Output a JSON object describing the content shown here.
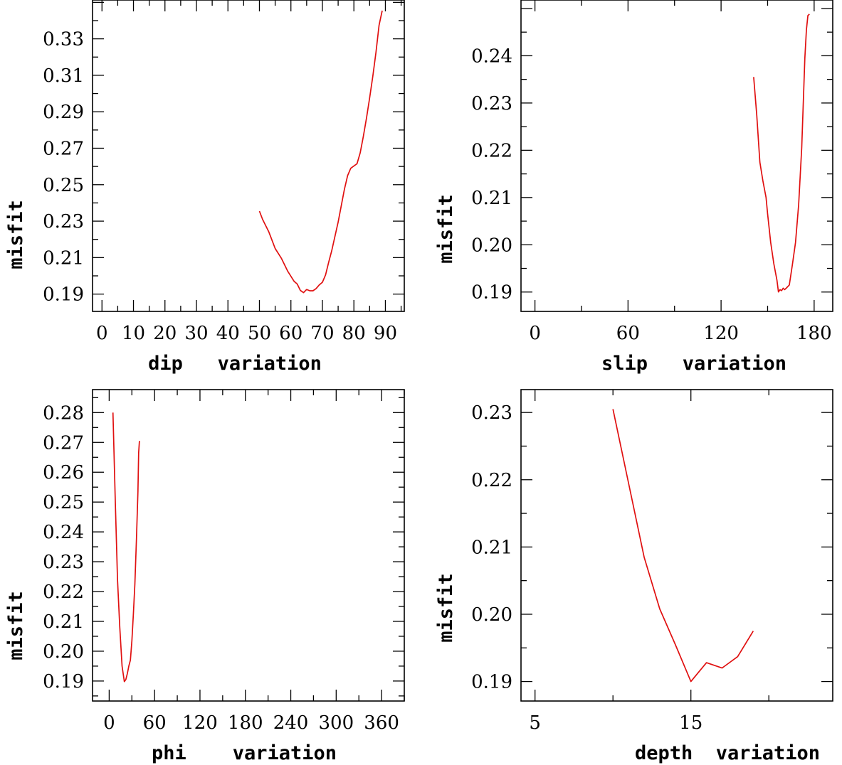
{
  "chart_data": [
    {
      "type": "line",
      "panel": "top-left",
      "xlabel": "dip   variation",
      "ylabel": "misfit",
      "xlim": [
        -3,
        96
      ],
      "ylim": [
        0.1805,
        0.3513
      ],
      "x_ticks": [
        0,
        10,
        20,
        30,
        40,
        50,
        60,
        70,
        80,
        90
      ],
      "x_tick_labels": [
        "0",
        "10",
        "20",
        "30",
        "40",
        "50",
        "60",
        "70",
        "80",
        "90"
      ],
      "y_ticks": [
        0.19,
        0.21,
        0.23,
        0.25,
        0.27,
        0.29,
        0.31,
        0.33
      ],
      "y_tick_labels": [
        "0.19",
        "0.21",
        "0.23",
        "0.25",
        "0.27",
        "0.29",
        "0.31",
        "0.33"
      ],
      "series": [
        {
          "name": "misfit",
          "color": "#e01010",
          "x": [
            50,
            51,
            53,
            55,
            57,
            59,
            61,
            62,
            63,
            64,
            65,
            66,
            67,
            68,
            69,
            70,
            71,
            72,
            73,
            75,
            77,
            78,
            79,
            80,
            81,
            82,
            83,
            84,
            85,
            86,
            87,
            88,
            89
          ],
          "y": [
            0.2355,
            0.231,
            0.224,
            0.215,
            0.2095,
            0.2025,
            0.197,
            0.1955,
            0.192,
            0.1908,
            0.1925,
            0.1918,
            0.1918,
            0.193,
            0.195,
            0.1965,
            0.2005,
            0.2075,
            0.214,
            0.2295,
            0.2475,
            0.255,
            0.259,
            0.2603,
            0.2615,
            0.2675,
            0.2765,
            0.2865,
            0.2975,
            0.3095,
            0.3225,
            0.3375,
            0.3455
          ]
        }
      ]
    },
    {
      "type": "line",
      "panel": "top-right",
      "xlabel": "slip   variation",
      "ylabel": "misfit",
      "xlim": [
        -9,
        192
      ],
      "ylim": [
        0.1859,
        0.2518
      ],
      "x_ticks": [
        0,
        60,
        120,
        180
      ],
      "x_tick_labels": [
        "0",
        "60",
        "120",
        "180"
      ],
      "y_ticks": [
        0.19,
        0.2,
        0.21,
        0.22,
        0.23,
        0.24
      ],
      "y_tick_labels": [
        "0.19",
        "0.20",
        "0.21",
        "0.22",
        "0.23",
        "0.24"
      ],
      "series": [
        {
          "name": "misfit",
          "color": "#e01010",
          "x": [
            141,
            143,
            145,
            147,
            149,
            150,
            152,
            154,
            156,
            157,
            158,
            159,
            160,
            161,
            162,
            164,
            166,
            168,
            170,
            172,
            174,
            175,
            176,
            177
          ],
          "y": [
            0.2355,
            0.2275,
            0.2175,
            0.2135,
            0.21,
            0.2065,
            0.2005,
            0.196,
            0.1925,
            0.19,
            0.1905,
            0.1903,
            0.1908,
            0.1905,
            0.1908,
            0.1915,
            0.1958,
            0.2005,
            0.2085,
            0.2205,
            0.2395,
            0.2455,
            0.2485,
            0.2488
          ]
        }
      ]
    },
    {
      "type": "line",
      "panel": "bottom-left",
      "xlabel": "phi    variation",
      "ylabel": "misfit",
      "xlim": [
        -22,
        390
      ],
      "ylim": [
        0.1833,
        0.2877
      ],
      "x_ticks": [
        0,
        60,
        120,
        180,
        240,
        300,
        360
      ],
      "x_tick_labels": [
        "0",
        "60",
        "120",
        "180",
        "240",
        "300",
        "360"
      ],
      "y_ticks": [
        0.19,
        0.2,
        0.21,
        0.22,
        0.23,
        0.24,
        0.25,
        0.26,
        0.27,
        0.28
      ],
      "y_tick_labels": [
        "0.19",
        "0.20",
        "0.21",
        "0.22",
        "0.23",
        "0.24",
        "0.25",
        "0.26",
        "0.27",
        "0.28"
      ],
      "series": [
        {
          "name": "misfit",
          "color": "#e01010",
          "x": [
            5,
            8,
            11,
            14,
            17,
            20,
            22,
            24,
            26,
            28,
            30,
            32,
            34,
            36,
            38,
            39,
            40
          ],
          "y": [
            0.28,
            0.251,
            0.224,
            0.208,
            0.195,
            0.1898,
            0.1905,
            0.1925,
            0.195,
            0.197,
            0.2035,
            0.2125,
            0.2225,
            0.2375,
            0.2535,
            0.2665,
            0.2705
          ]
        }
      ]
    },
    {
      "type": "line",
      "panel": "bottom-right",
      "xlabel": "depth  variation",
      "ylabel": "misfit",
      "xlim": [
        4.1,
        24.1
      ],
      "ylim": [
        0.1871,
        0.2334
      ],
      "x_ticks": [
        5,
        15
      ],
      "x_tick_labels": [
        "5",
        "15"
      ],
      "y_ticks": [
        0.19,
        0.2,
        0.21,
        0.22,
        0.23
      ],
      "y_tick_labels": [
        "0.19",
        "0.20",
        "0.21",
        "0.22",
        "0.23"
      ],
      "series": [
        {
          "name": "misfit",
          "color": "#e01010",
          "x": [
            10,
            11,
            12,
            13,
            14,
            15,
            16,
            17,
            18,
            19
          ],
          "y": [
            0.2305,
            0.2195,
            0.2085,
            0.2008,
            0.1955,
            0.19,
            0.1928,
            0.192,
            0.1937,
            0.1975
          ]
        }
      ]
    }
  ]
}
